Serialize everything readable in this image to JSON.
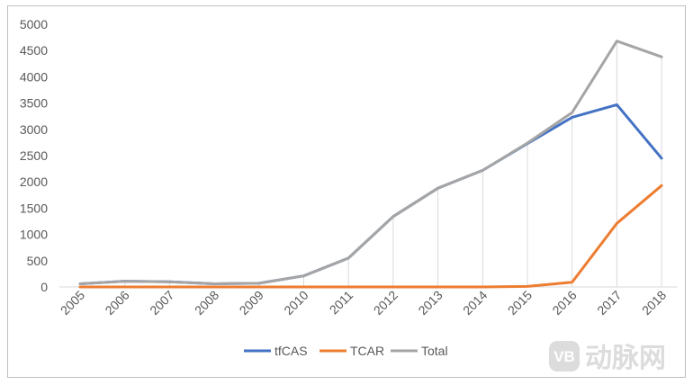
{
  "chart_data": {
    "type": "line",
    "title": "",
    "xlabel": "",
    "ylabel": "",
    "categories": [
      "2005",
      "2006",
      "2007",
      "2008",
      "2009",
      "2010",
      "2011",
      "2012",
      "2013",
      "2014",
      "2015",
      "2016",
      "2017",
      "2018"
    ],
    "ylim": [
      0,
      5000
    ],
    "yticks": [
      0,
      500,
      1000,
      1500,
      2000,
      2500,
      3000,
      3500,
      4000,
      4500,
      5000
    ],
    "grid": "vertical drop lines at category positions",
    "legend_position": "bottom-center",
    "series": [
      {
        "name": "tfCAS",
        "color": "#4472c4",
        "values": [
          60,
          110,
          100,
          60,
          70,
          210,
          550,
          1340,
          1880,
          2220,
          2730,
          3230,
          3470,
          2450
        ]
      },
      {
        "name": "TCAR",
        "color": "#ed7d31",
        "values": [
          0,
          0,
          0,
          0,
          0,
          0,
          0,
          0,
          0,
          0,
          10,
          90,
          1210,
          1930
        ]
      },
      {
        "name": "Total",
        "color": "#a5a5a5",
        "values": [
          60,
          110,
          100,
          60,
          70,
          210,
          550,
          1340,
          1880,
          2220,
          2740,
          3320,
          4680,
          4380
        ]
      }
    ]
  },
  "watermark": {
    "logo_letters": "VB",
    "text": "动脉网"
  }
}
